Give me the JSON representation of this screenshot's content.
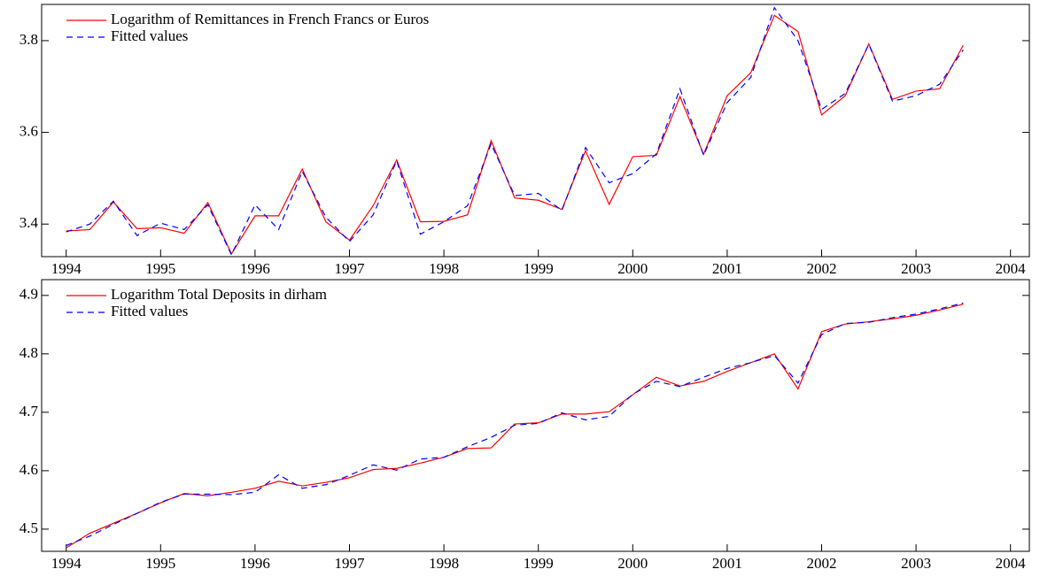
{
  "chart_data": [
    {
      "type": "line",
      "x": [
        1994,
        1994.25,
        1994.5,
        1994.75,
        1995,
        1995.25,
        1995.5,
        1995.75,
        1996,
        1996.25,
        1996.5,
        1996.75,
        1997,
        1997.25,
        1997.5,
        1997.75,
        1998,
        1998.25,
        1998.5,
        1998.75,
        1999,
        1999.25,
        1999.5,
        1999.75,
        2000,
        2000.25,
        2000.5,
        2000.75,
        2001,
        2001.25,
        2001.5,
        2001.75,
        2002,
        2002.25,
        2002.5,
        2002.75,
        2003,
        2003.25,
        2003.5
      ],
      "series": [
        {
          "name": "Logarithm of Remittances in French Francs or Euros",
          "color": "#ff0000",
          "dash": false,
          "values": [
            3.385,
            3.388,
            3.448,
            3.39,
            3.392,
            3.38,
            3.447,
            3.335,
            3.418,
            3.418,
            3.52,
            3.405,
            3.365,
            3.44,
            3.54,
            3.405,
            3.406,
            3.42,
            3.582,
            3.457,
            3.452,
            3.432,
            3.56,
            3.443,
            3.547,
            3.55,
            3.678,
            3.552,
            3.68,
            3.73,
            3.855,
            3.82,
            3.638,
            3.68,
            3.793,
            3.672,
            3.69,
            3.695,
            3.79
          ]
        },
        {
          "name": "Fitted values",
          "color": "#0000ff",
          "dash": true,
          "values": [
            3.383,
            3.4,
            3.45,
            3.375,
            3.402,
            3.388,
            3.442,
            3.333,
            3.442,
            3.388,
            3.515,
            3.415,
            3.362,
            3.42,
            3.538,
            3.378,
            3.405,
            3.44,
            3.575,
            3.462,
            3.467,
            3.43,
            3.567,
            3.49,
            3.51,
            3.553,
            3.695,
            3.55,
            3.665,
            3.72,
            3.872,
            3.8,
            3.65,
            3.685,
            3.792,
            3.668,
            3.68,
            3.705,
            3.78
          ]
        }
      ],
      "xlim": [
        1993.74,
        2004.2
      ],
      "xticks": [
        1994,
        1995,
        1996,
        1997,
        1998,
        1999,
        2000,
        2001,
        2002,
        2003,
        2004
      ],
      "ylim": [
        3.329,
        3.879
      ],
      "yticks": [
        3.4,
        3.6,
        3.8
      ],
      "legend": "upper left"
    },
    {
      "type": "line",
      "x": [
        1994,
        1994.25,
        1994.5,
        1994.75,
        1995,
        1995.25,
        1995.5,
        1995.75,
        1996,
        1996.25,
        1996.5,
        1996.75,
        1997,
        1997.25,
        1997.5,
        1997.75,
        1998,
        1998.25,
        1998.5,
        1998.75,
        1999,
        1999.25,
        1999.5,
        1999.75,
        2000,
        2000.25,
        2000.5,
        2000.75,
        2001,
        2001.25,
        2001.5,
        2001.75,
        2002,
        2002.25,
        2002.5,
        2002.75,
        2003,
        2003.25,
        2003.5
      ],
      "series": [
        {
          "name": "Logarithm Total Deposits in dirham",
          "color": "#ff0000",
          "dash": false,
          "values": [
            4.468,
            4.493,
            4.51,
            4.527,
            4.545,
            4.561,
            4.557,
            4.563,
            4.57,
            4.582,
            4.574,
            4.58,
            4.588,
            4.602,
            4.604,
            4.613,
            4.623,
            4.638,
            4.639,
            4.68,
            4.682,
            4.697,
            4.697,
            4.701,
            4.73,
            4.76,
            4.745,
            4.753,
            4.77,
            4.785,
            4.8,
            4.74,
            4.838,
            4.851,
            4.855,
            4.86,
            4.866,
            4.875,
            4.885
          ]
        },
        {
          "name": "Fitted values",
          "color": "#0000ff",
          "dash": true,
          "values": [
            4.472,
            4.488,
            4.508,
            4.527,
            4.546,
            4.56,
            4.56,
            4.559,
            4.563,
            4.593,
            4.57,
            4.576,
            4.592,
            4.61,
            4.601,
            4.62,
            4.623,
            4.641,
            4.657,
            4.678,
            4.681,
            4.699,
            4.687,
            4.693,
            4.731,
            4.753,
            4.744,
            4.76,
            4.775,
            4.785,
            4.797,
            4.75,
            4.833,
            4.852,
            4.854,
            4.862,
            4.868,
            4.877,
            4.887
          ]
        }
      ],
      "xlim": [
        1993.74,
        2004.2
      ],
      "xticks": [
        1994,
        1995,
        1996,
        1997,
        1998,
        1999,
        2000,
        2001,
        2002,
        2003,
        2004
      ],
      "ylim": [
        4.462,
        4.927
      ],
      "yticks": [
        4.5,
        4.6,
        4.7,
        4.8,
        4.9
      ],
      "legend": "upper left"
    }
  ]
}
